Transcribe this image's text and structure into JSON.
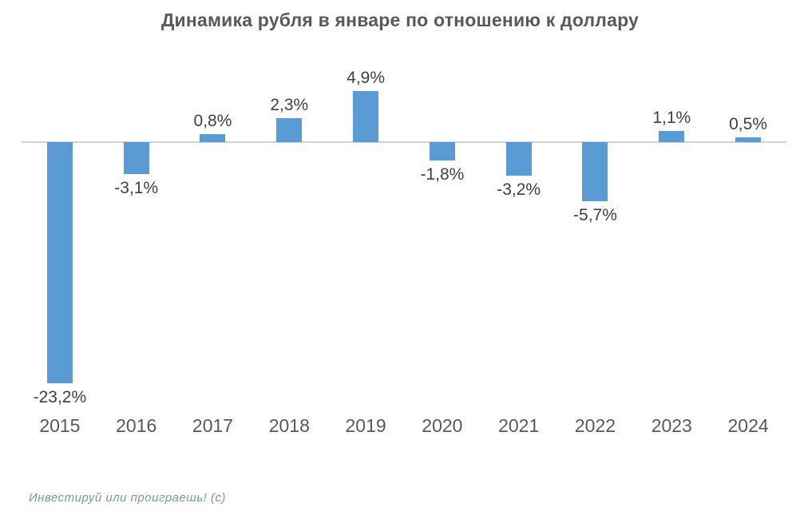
{
  "watermark": "Инвестируй или проиграешь! (с)",
  "colors": {
    "bar": "#5b9bd5",
    "axis_line": "#d3d3d3",
    "title_text": "#595959",
    "value_label_text": "#404040",
    "year_label_text": "#595959",
    "watermark_text": "#74a476"
  },
  "chart_data": {
    "type": "bar",
    "title": "Динамика рубля в январе по отношению к доллару",
    "categories": [
      "2015",
      "2016",
      "2017",
      "2018",
      "2019",
      "2020",
      "2021",
      "2022",
      "2023",
      "2024"
    ],
    "values": [
      -23.2,
      -3.1,
      0.8,
      2.3,
      4.9,
      -1.8,
      -3.2,
      -5.7,
      1.1,
      0.5
    ],
    "labels": [
      "-23,2%",
      "-3,1%",
      "0,8%",
      "2,3%",
      "4,9%",
      "-1,8%",
      "-3,2%",
      "-5,7%",
      "1,1%",
      "0,5%"
    ],
    "xlabel": "",
    "ylabel": "",
    "unit": "%",
    "ylim": [
      -25,
      6
    ],
    "grid": false,
    "legend": false,
    "y_axis_visible": false,
    "bar_color": "#5b9bd5",
    "baseline": 0
  }
}
